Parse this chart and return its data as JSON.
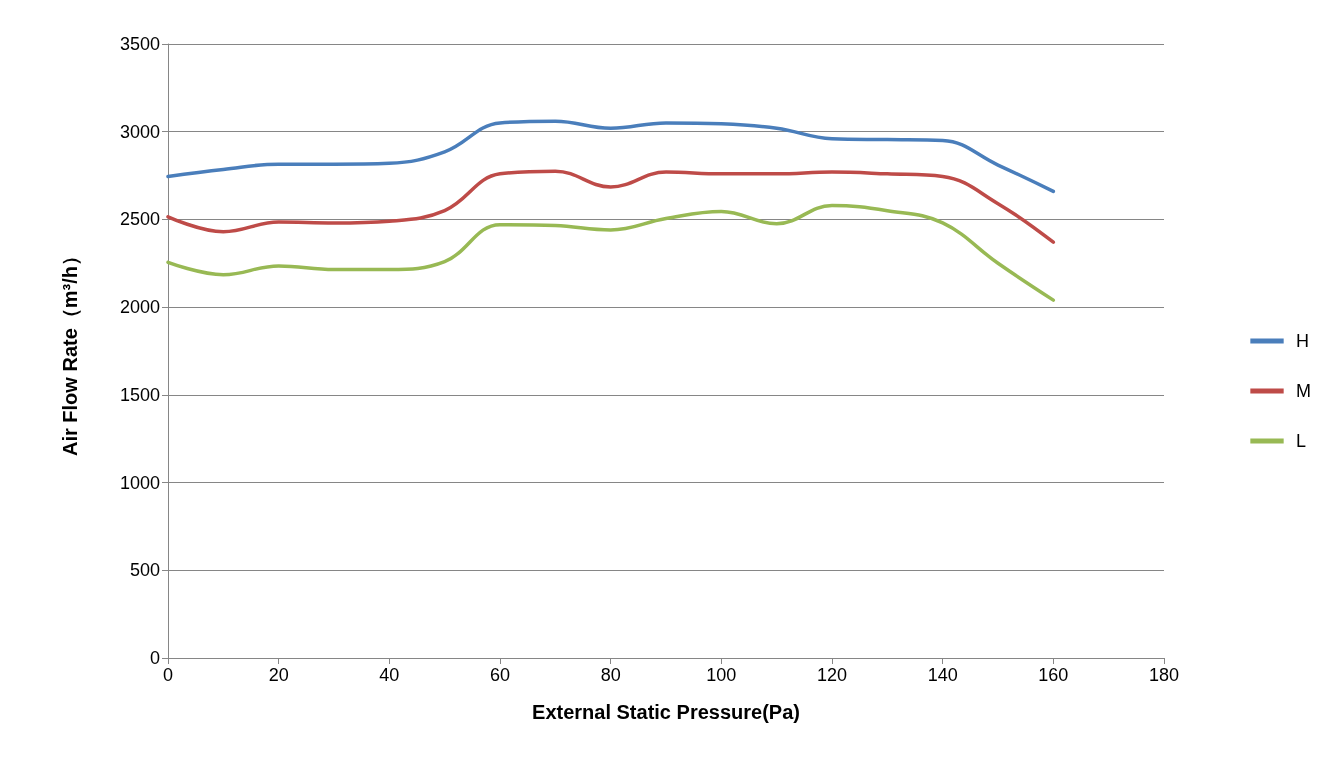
{
  "chart_data": {
    "type": "line",
    "xlabel": "External Static Pressure(Pa)",
    "ylabel": "Air Flow Rate（m³/h）",
    "x": [
      0,
      10,
      20,
      30,
      40,
      50,
      60,
      70,
      80,
      90,
      100,
      110,
      120,
      130,
      140,
      150,
      160
    ],
    "series": [
      {
        "name": "H",
        "color": "#4a7ebb",
        "values": [
          2745,
          2785,
          2815,
          2815,
          2820,
          2885,
          3050,
          3060,
          3020,
          3050,
          3045,
          3020,
          2960,
          2955,
          2950,
          2810,
          2660
        ]
      },
      {
        "name": "M",
        "color": "#be4b48",
        "values": [
          2515,
          2430,
          2485,
          2480,
          2490,
          2550,
          2760,
          2775,
          2685,
          2770,
          2760,
          2760,
          2770,
          2760,
          2745,
          2590,
          2370
        ]
      },
      {
        "name": "L",
        "color": "#98b954",
        "values": [
          2255,
          2185,
          2235,
          2215,
          2215,
          2260,
          2470,
          2465,
          2440,
          2505,
          2545,
          2475,
          2580,
          2550,
          2480,
          2250,
          2040
        ]
      }
    ],
    "xlim": [
      0,
      180
    ],
    "xticks": [
      0,
      20,
      40,
      60,
      80,
      100,
      120,
      140,
      160,
      180
    ],
    "ylim": [
      0,
      3500
    ],
    "yticks": [
      0,
      500,
      1000,
      1500,
      2000,
      2500,
      3000,
      3500
    ],
    "grid": "y",
    "legend": "right",
    "marker": "none",
    "line_style": "solid"
  }
}
